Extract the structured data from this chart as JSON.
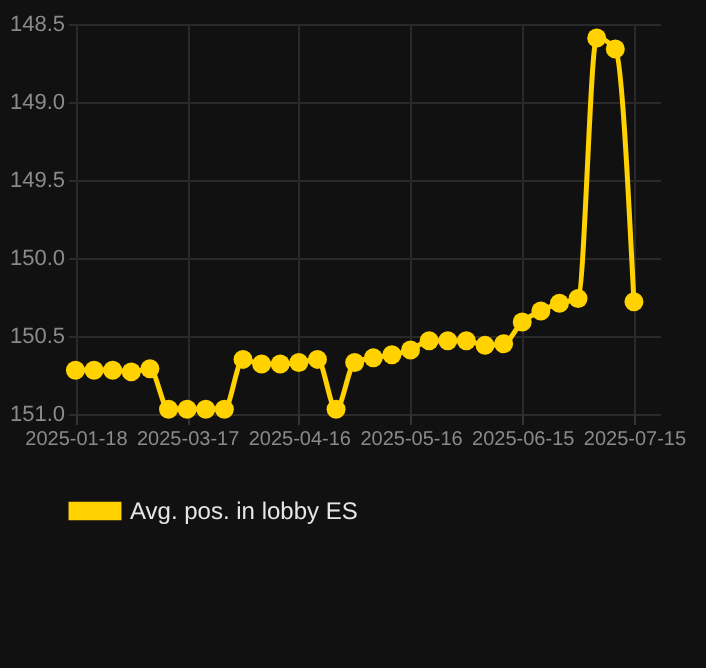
{
  "chart_data": {
    "type": "line",
    "x": [
      "2025-02-15",
      "2025-02-20",
      "2025-02-25",
      "2025-03-02",
      "2025-03-07",
      "2025-03-12",
      "2025-03-17",
      "2025-03-22",
      "2025-03-27",
      "2025-04-01",
      "2025-04-06",
      "2025-04-11",
      "2025-04-16",
      "2025-04-21",
      "2025-04-26",
      "2025-05-01",
      "2025-05-06",
      "2025-05-11",
      "2025-05-16",
      "2025-05-21",
      "2025-05-26",
      "2025-05-31",
      "2025-06-05",
      "2025-06-10",
      "2025-06-15",
      "2025-06-20",
      "2025-06-25",
      "2025-06-30",
      "2025-07-05",
      "2025-07-10",
      "2025-07-15"
    ],
    "series": [
      {
        "name": "Avg. pos. in lobby ES",
        "color": "#ffd200",
        "values": [
          150.72,
          150.72,
          150.72,
          150.73,
          150.71,
          150.97,
          150.97,
          150.97,
          150.97,
          150.65,
          150.68,
          150.68,
          150.67,
          150.65,
          150.97,
          150.67,
          150.64,
          150.62,
          150.59,
          150.53,
          150.53,
          150.53,
          150.56,
          150.55,
          150.41,
          150.34,
          150.29,
          150.26,
          148.59,
          148.66,
          150.28
        ]
      }
    ],
    "xlim": [
      "2025-02-13",
      "2025-07-22"
    ],
    "xticks": [
      {
        "value": "2025-02-15",
        "label": "2025-01-18"
      },
      "2025-03-17",
      "2025-04-16",
      "2025-05-16",
      "2025-06-15",
      "2025-07-15"
    ],
    "ylim": [
      151.0,
      148.5
    ],
    "yticks": [
      148.5,
      {
        "value": 149,
        "label": "149.0"
      },
      149.5,
      {
        "value": 150,
        "label": "150.0"
      },
      150.5,
      {
        "value": 151,
        "label": "151.0"
      }
    ],
    "grid": true,
    "legend": "bottom",
    "marker": "circle",
    "line_style": "solid"
  }
}
